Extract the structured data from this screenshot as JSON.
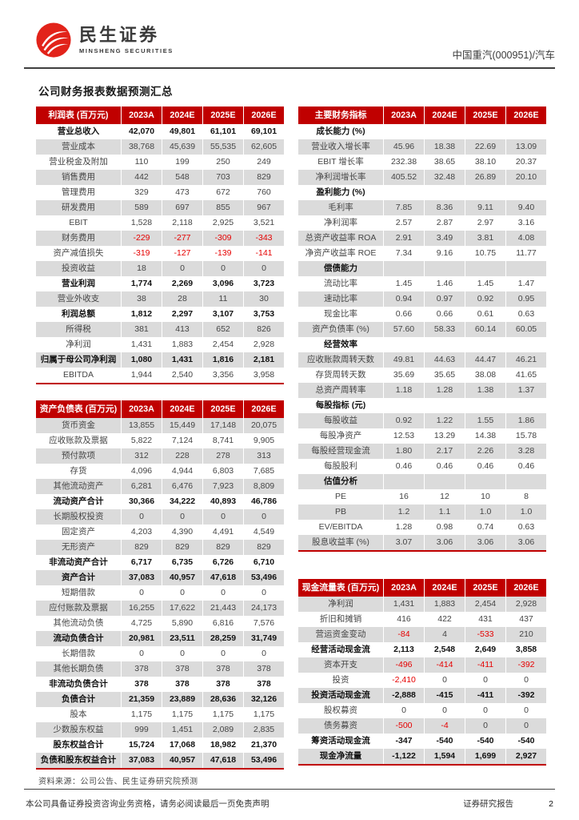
{
  "header": {
    "brand_cn": "民生证券",
    "brand_en": "MINSHENG SECURITIES",
    "doc_ref": "中国重汽(000951)/汽车"
  },
  "page_title": "公司财务报表数据预测汇总",
  "colors": {
    "table_header_red": "#C00000",
    "negative_red": "#E60000",
    "row_gray": "#DBDBDB",
    "logo_red": "#E2231A"
  },
  "tables": {
    "income": {
      "title": "利润表 (百万元)",
      "columns": [
        "2023A",
        "2024E",
        "2025E",
        "2026E"
      ],
      "zebra_start": "white",
      "rows": [
        {
          "label": "营业总收入",
          "values": [
            "42,070",
            "49,801",
            "61,101",
            "69,101"
          ],
          "bold": true
        },
        {
          "label": "营业成本",
          "values": [
            "38,768",
            "45,639",
            "55,535",
            "62,605"
          ]
        },
        {
          "label": "营业税金及附加",
          "values": [
            "110",
            "199",
            "250",
            "249"
          ]
        },
        {
          "label": "销售费用",
          "values": [
            "442",
            "548",
            "703",
            "829"
          ]
        },
        {
          "label": "管理费用",
          "values": [
            "329",
            "473",
            "672",
            "760"
          ]
        },
        {
          "label": "研发费用",
          "values": [
            "589",
            "697",
            "855",
            "967"
          ]
        },
        {
          "label": "EBIT",
          "values": [
            "1,528",
            "2,118",
            "2,925",
            "3,521"
          ]
        },
        {
          "label": "财务费用",
          "values": [
            "-229",
            "-277",
            "-309",
            "-343"
          ]
        },
        {
          "label": "资产减值损失",
          "values": [
            "-319",
            "-127",
            "-139",
            "-141"
          ]
        },
        {
          "label": "投资收益",
          "values": [
            "18",
            "0",
            "0",
            "0"
          ]
        },
        {
          "label": "营业利润",
          "values": [
            "1,774",
            "2,269",
            "3,096",
            "3,723"
          ],
          "bold": true
        },
        {
          "label": "营业外收支",
          "values": [
            "38",
            "28",
            "11",
            "30"
          ]
        },
        {
          "label": "利润总额",
          "values": [
            "1,812",
            "2,297",
            "3,107",
            "3,753"
          ],
          "bold": true
        },
        {
          "label": "所得税",
          "values": [
            "381",
            "413",
            "652",
            "826"
          ]
        },
        {
          "label": "净利润",
          "values": [
            "1,431",
            "1,883",
            "2,454",
            "2,928"
          ]
        },
        {
          "label": "归属于母公司净利润",
          "values": [
            "1,080",
            "1,431",
            "1,816",
            "2,181"
          ],
          "bold": true
        },
        {
          "label": "EBITDA",
          "values": [
            "1,944",
            "2,540",
            "3,356",
            "3,958"
          ]
        }
      ]
    },
    "balance": {
      "title": "资产负债表 (百万元)",
      "columns": [
        "2023A",
        "2024E",
        "2025E",
        "2026E"
      ],
      "zebra_start": "gray",
      "rows": [
        {
          "label": "货币资金",
          "values": [
            "13,855",
            "15,449",
            "17,148",
            "20,075"
          ]
        },
        {
          "label": "应收账款及票据",
          "values": [
            "5,822",
            "7,124",
            "8,741",
            "9,905"
          ]
        },
        {
          "label": "预付款项",
          "values": [
            "312",
            "228",
            "278",
            "313"
          ]
        },
        {
          "label": "存货",
          "values": [
            "4,096",
            "4,944",
            "6,803",
            "7,685"
          ]
        },
        {
          "label": "其他流动资产",
          "values": [
            "6,281",
            "6,476",
            "7,923",
            "8,809"
          ]
        },
        {
          "label": "流动资产合计",
          "values": [
            "30,366",
            "34,222",
            "40,893",
            "46,786"
          ],
          "bold": true
        },
        {
          "label": "长期股权投资",
          "values": [
            "0",
            "0",
            "0",
            "0"
          ]
        },
        {
          "label": "固定资产",
          "values": [
            "4,203",
            "4,390",
            "4,491",
            "4,549"
          ]
        },
        {
          "label": "无形资产",
          "values": [
            "829",
            "829",
            "829",
            "829"
          ]
        },
        {
          "label": "非流动资产合计",
          "values": [
            "6,717",
            "6,735",
            "6,726",
            "6,710"
          ],
          "bold": true
        },
        {
          "label": "资产合计",
          "values": [
            "37,083",
            "40,957",
            "47,618",
            "53,496"
          ],
          "bold": true
        },
        {
          "label": "短期借款",
          "values": [
            "0",
            "0",
            "0",
            "0"
          ]
        },
        {
          "label": "应付账款及票据",
          "values": [
            "16,255",
            "17,622",
            "21,443",
            "24,173"
          ]
        },
        {
          "label": "其他流动负债",
          "values": [
            "4,725",
            "5,890",
            "6,816",
            "7,576"
          ]
        },
        {
          "label": "流动负债合计",
          "values": [
            "20,981",
            "23,511",
            "28,259",
            "31,749"
          ],
          "bold": true
        },
        {
          "label": "长期借款",
          "values": [
            "0",
            "0",
            "0",
            "0"
          ]
        },
        {
          "label": "其他长期负债",
          "values": [
            "378",
            "378",
            "378",
            "378"
          ]
        },
        {
          "label": "非流动负债合计",
          "values": [
            "378",
            "378",
            "378",
            "378"
          ],
          "bold": true
        },
        {
          "label": "负债合计",
          "values": [
            "21,359",
            "23,889",
            "28,636",
            "32,126"
          ],
          "bold": true
        },
        {
          "label": "股本",
          "values": [
            "1,175",
            "1,175",
            "1,175",
            "1,175"
          ]
        },
        {
          "label": "少数股东权益",
          "values": [
            "999",
            "1,451",
            "2,089",
            "2,835"
          ]
        },
        {
          "label": "股东权益合计",
          "values": [
            "15,724",
            "17,068",
            "18,982",
            "21,370"
          ],
          "bold": true
        },
        {
          "label": "负债和股东权益合计",
          "values": [
            "37,083",
            "40,957",
            "47,618",
            "53,496"
          ],
          "bold": true
        }
      ]
    },
    "indicators": {
      "title": "主要财务指标",
      "columns": [
        "2023A",
        "2024E",
        "2025E",
        "2026E"
      ],
      "zebra_start": "white",
      "rows": [
        {
          "label": "成长能力 (%)",
          "values": [
            "",
            "",
            "",
            ""
          ],
          "bold": true
        },
        {
          "label": "营业收入增长率",
          "values": [
            "45.96",
            "18.38",
            "22.69",
            "13.09"
          ]
        },
        {
          "label": "EBIT 增长率",
          "values": [
            "232.38",
            "38.65",
            "38.10",
            "20.37"
          ]
        },
        {
          "label": "净利润增长率",
          "values": [
            "405.52",
            "32.48",
            "26.89",
            "20.10"
          ]
        },
        {
          "label": "盈利能力 (%)",
          "values": [
            "",
            "",
            "",
            ""
          ],
          "bold": true
        },
        {
          "label": "毛利率",
          "values": [
            "7.85",
            "8.36",
            "9.11",
            "9.40"
          ]
        },
        {
          "label": "净利润率",
          "values": [
            "2.57",
            "2.87",
            "2.97",
            "3.16"
          ]
        },
        {
          "label": "总资产收益率 ROA",
          "values": [
            "2.91",
            "3.49",
            "3.81",
            "4.08"
          ]
        },
        {
          "label": "净资产收益率 ROE",
          "values": [
            "7.34",
            "9.16",
            "10.75",
            "11.77"
          ]
        },
        {
          "label": "偿债能力",
          "values": [
            "",
            "",
            "",
            ""
          ],
          "bold": true
        },
        {
          "label": "流动比率",
          "values": [
            "1.45",
            "1.46",
            "1.45",
            "1.47"
          ]
        },
        {
          "label": "速动比率",
          "values": [
            "0.94",
            "0.97",
            "0.92",
            "0.95"
          ]
        },
        {
          "label": "现金比率",
          "values": [
            "0.66",
            "0.66",
            "0.61",
            "0.63"
          ]
        },
        {
          "label": "资产负债率 (%)",
          "values": [
            "57.60",
            "58.33",
            "60.14",
            "60.05"
          ]
        },
        {
          "label": "经营效率",
          "values": [
            "",
            "",
            "",
            ""
          ],
          "bold": true
        },
        {
          "label": "应收账款周转天数",
          "values": [
            "49.81",
            "44.63",
            "44.47",
            "46.21"
          ]
        },
        {
          "label": "存货周转天数",
          "values": [
            "35.69",
            "35.65",
            "38.08",
            "41.65"
          ]
        },
        {
          "label": "总资产周转率",
          "values": [
            "1.18",
            "1.28",
            "1.38",
            "1.37"
          ]
        },
        {
          "label": "每股指标 (元)",
          "values": [
            "",
            "",
            "",
            ""
          ],
          "bold": true
        },
        {
          "label": "每股收益",
          "values": [
            "0.92",
            "1.22",
            "1.55",
            "1.86"
          ]
        },
        {
          "label": "每股净资产",
          "values": [
            "12.53",
            "13.29",
            "14.38",
            "15.78"
          ]
        },
        {
          "label": "每股经营现金流",
          "values": [
            "1.80",
            "2.17",
            "2.26",
            "3.28"
          ]
        },
        {
          "label": "每股股利",
          "values": [
            "0.46",
            "0.46",
            "0.46",
            "0.46"
          ]
        },
        {
          "label": "估值分析",
          "values": [
            "",
            "",
            "",
            ""
          ],
          "bold": true
        },
        {
          "label": "PE",
          "values": [
            "16",
            "12",
            "10",
            "8"
          ]
        },
        {
          "label": "PB",
          "values": [
            "1.2",
            "1.1",
            "1.0",
            "1.0"
          ]
        },
        {
          "label": "EV/EBITDA",
          "values": [
            "1.28",
            "0.98",
            "0.74",
            "0.63"
          ]
        },
        {
          "label": "股息收益率 (%)",
          "values": [
            "3.07",
            "3.06",
            "3.06",
            "3.06"
          ]
        }
      ]
    },
    "cashflow": {
      "title": "现金流量表 (百万元)",
      "columns": [
        "2023A",
        "2024E",
        "2025E",
        "2026E"
      ],
      "zebra_start": "gray",
      "rows": [
        {
          "label": "净利润",
          "values": [
            "1,431",
            "1,883",
            "2,454",
            "2,928"
          ]
        },
        {
          "label": "折旧和摊销",
          "values": [
            "416",
            "422",
            "431",
            "437"
          ]
        },
        {
          "label": "营运资金变动",
          "values": [
            "-84",
            "4",
            "-533",
            "210"
          ]
        },
        {
          "label": "经营活动现金流",
          "values": [
            "2,113",
            "2,548",
            "2,649",
            "3,858"
          ],
          "bold": true
        },
        {
          "label": "资本开支",
          "values": [
            "-496",
            "-414",
            "-411",
            "-392"
          ]
        },
        {
          "label": "投资",
          "values": [
            "-2,410",
            "0",
            "0",
            "0"
          ]
        },
        {
          "label": "投资活动现金流",
          "values": [
            "-2,888",
            "-415",
            "-411",
            "-392"
          ],
          "bold": true
        },
        {
          "label": "股权募资",
          "values": [
            "0",
            "0",
            "0",
            "0"
          ]
        },
        {
          "label": "债务募资",
          "values": [
            "-500",
            "-4",
            "0",
            "0"
          ]
        },
        {
          "label": "筹资活动现金流",
          "values": [
            "-347",
            "-540",
            "-540",
            "-540"
          ],
          "bold": true
        },
        {
          "label": "现金净流量",
          "values": [
            "-1,122",
            "1,594",
            "1,699",
            "2,927"
          ],
          "bold": true
        }
      ]
    }
  },
  "source_note": "资料来源：公司公告、民生证券研究院预测",
  "footer": {
    "disclaimer": "本公司具备证券投资咨询业务资格，请务必阅读最后一页免责声明",
    "report_type": "证券研究报告",
    "page_number": "2"
  }
}
